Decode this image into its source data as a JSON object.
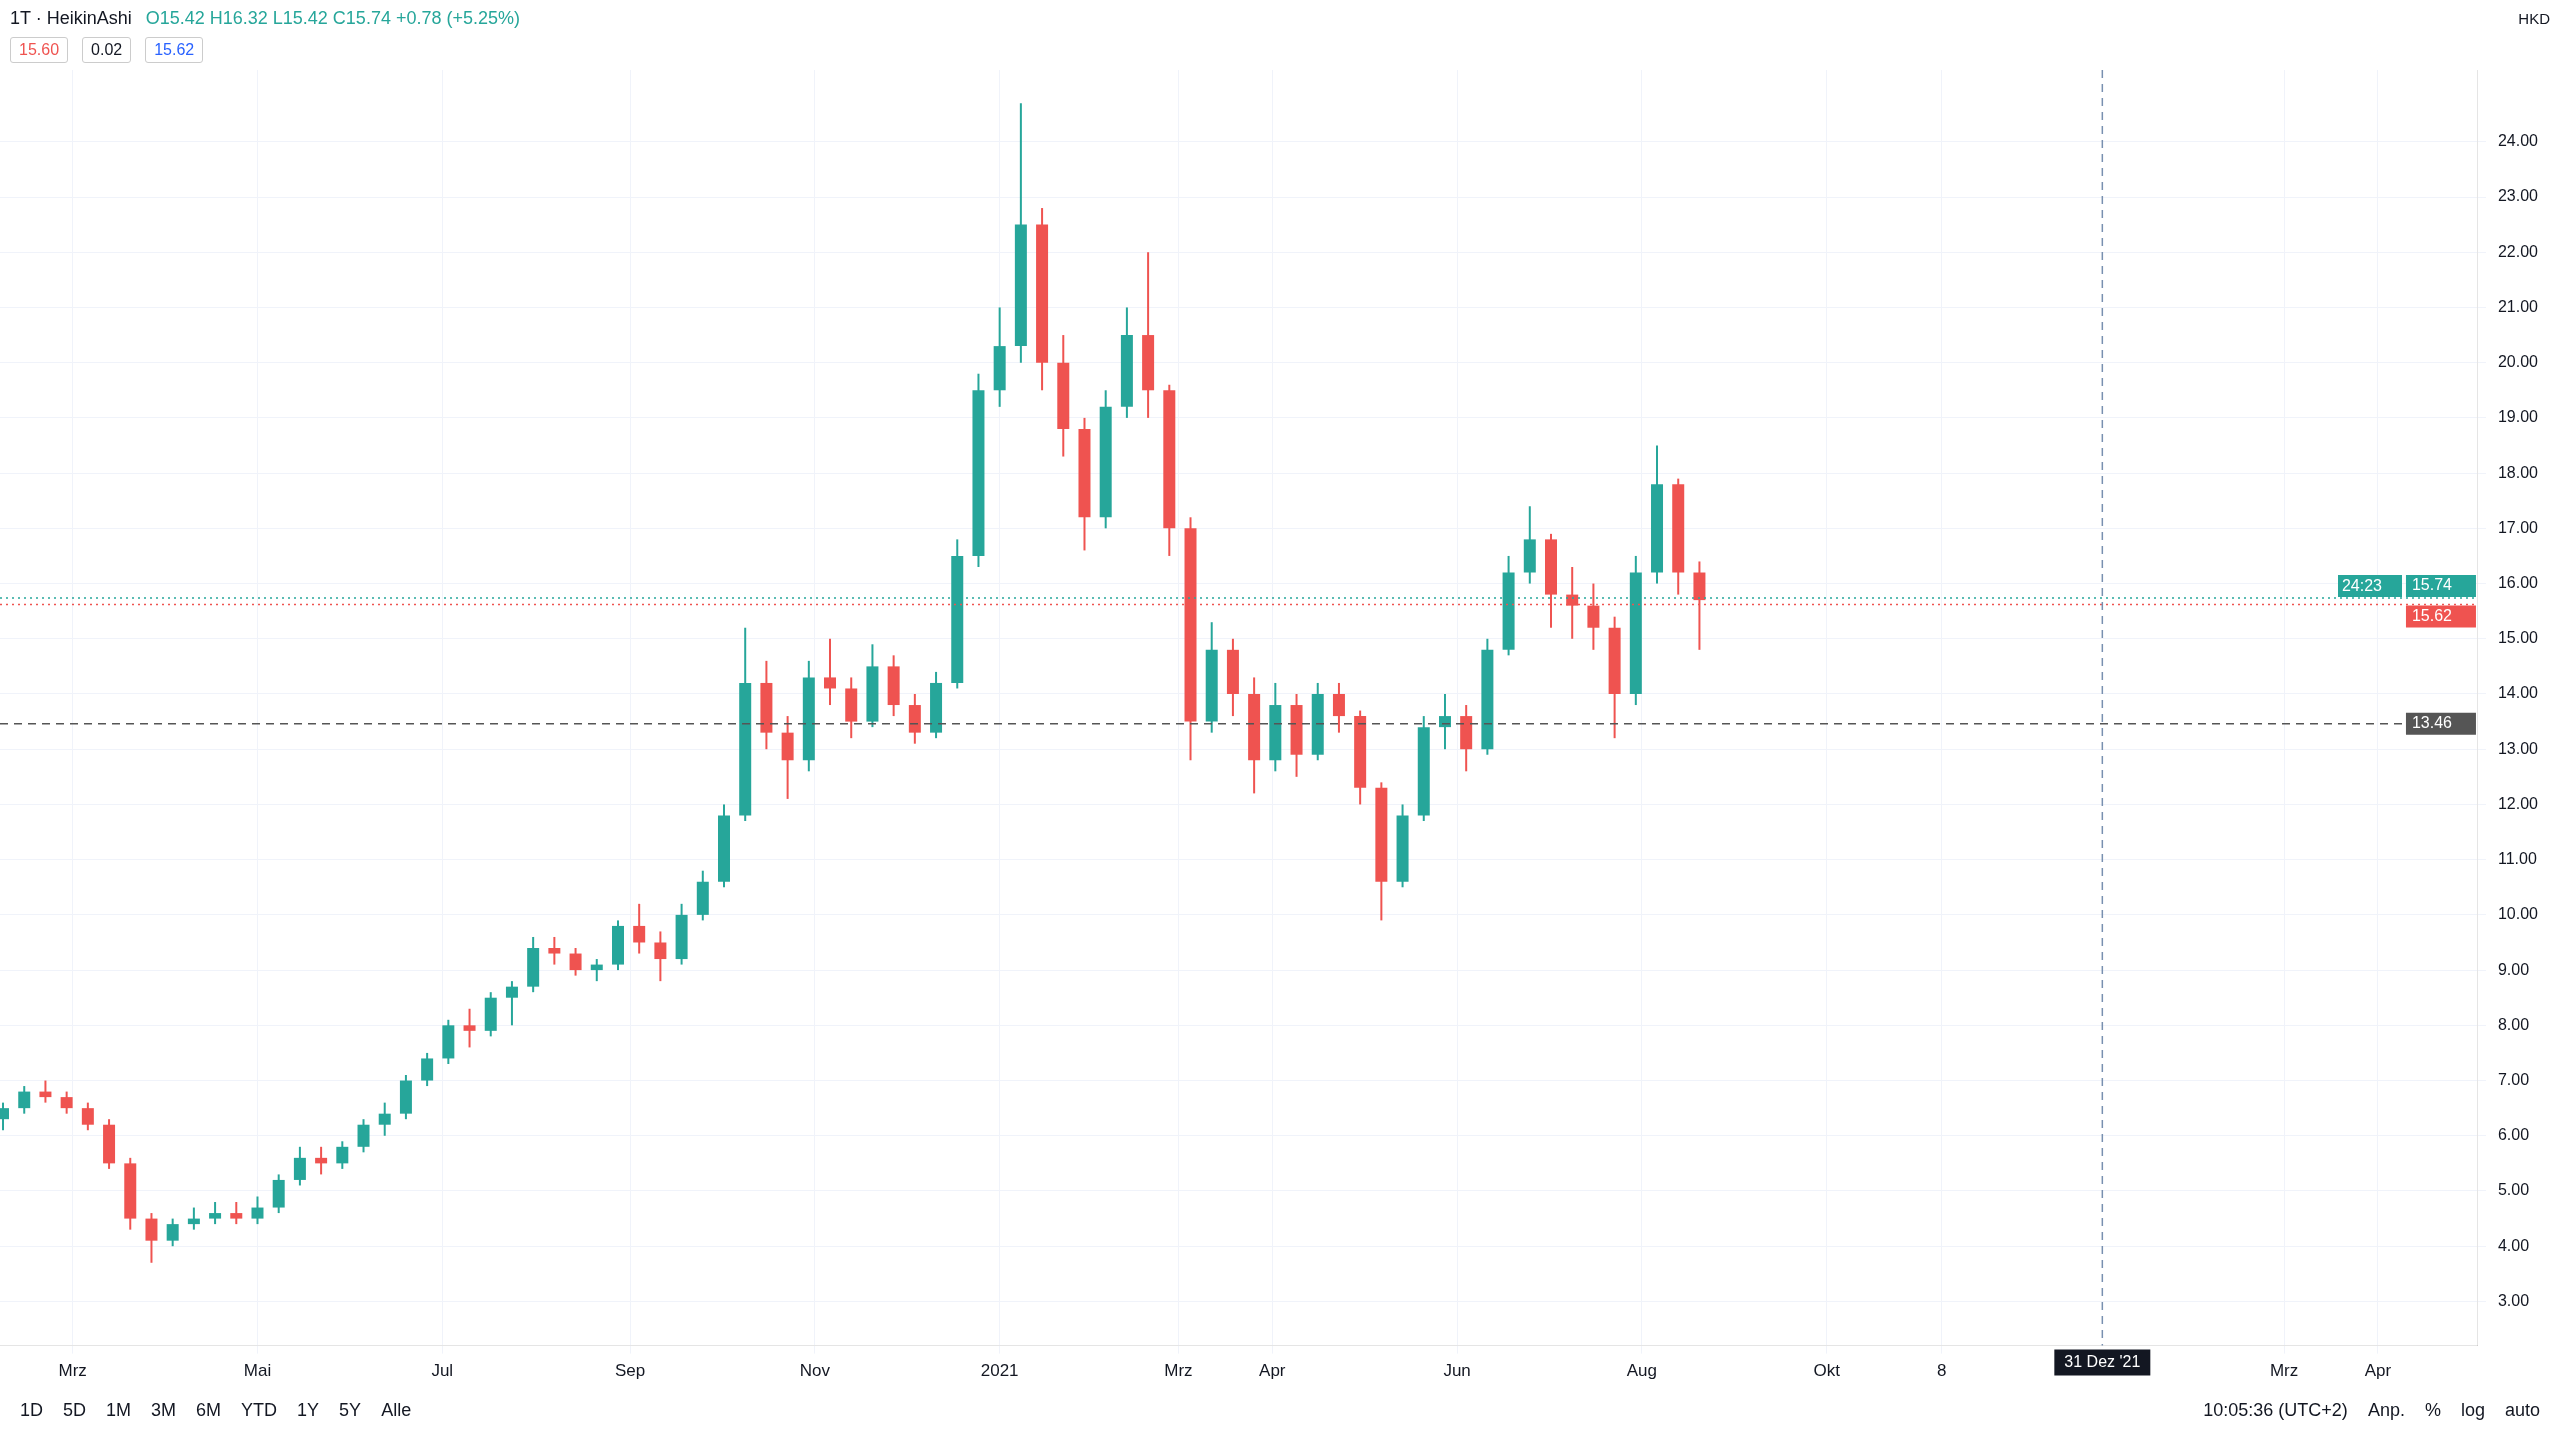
{
  "chart_data": {
    "type": "candlestick",
    "title": "1T · HeikinAshi",
    "subtitle": "O15.42 H16.32 L15.42 C15.74 +0.78 (+5.25%)",
    "annotations": [
      "15.60",
      "0.02",
      "15.62",
      "24:23",
      "HKD",
      "1D",
      "5D",
      "1M",
      "3M",
      "6M",
      "YTD",
      "1Y",
      "5Y",
      "Alle",
      "10:05:36 (UTC+2)",
      "Anp.",
      "%",
      "log",
      "auto"
    ],
    "x": [
      "2020-02-07",
      "2020-02-14",
      "2020-02-21",
      "2020-02-28",
      "2020-03-06",
      "2020-03-13",
      "2020-03-20",
      "2020-03-27",
      "2020-04-03",
      "2020-04-10",
      "2020-04-17",
      "2020-04-24",
      "2020-05-01",
      "2020-05-08",
      "2020-05-15",
      "2020-05-22",
      "2020-05-29",
      "2020-06-05",
      "2020-06-12",
      "2020-06-19",
      "2020-06-26",
      "2020-07-03",
      "2020-07-10",
      "2020-07-17",
      "2020-07-24",
      "2020-07-31",
      "2020-08-07",
      "2020-08-14",
      "2020-08-21",
      "2020-08-28",
      "2020-09-04",
      "2020-09-11",
      "2020-09-18",
      "2020-09-25",
      "2020-10-02",
      "2020-10-09",
      "2020-10-16",
      "2020-10-23",
      "2020-10-30",
      "2020-11-06",
      "2020-11-13",
      "2020-11-20",
      "2020-11-27",
      "2020-12-04",
      "2020-12-11",
      "2020-12-18",
      "2020-12-25",
      "2021-01-01",
      "2021-01-08",
      "2021-01-15",
      "2021-01-22",
      "2021-01-29",
      "2021-02-05",
      "2021-02-12",
      "2021-02-19",
      "2021-02-26",
      "2021-03-05",
      "2021-03-12",
      "2021-03-19",
      "2021-03-26",
      "2021-04-02",
      "2021-04-09",
      "2021-04-16",
      "2021-04-23",
      "2021-04-30",
      "2021-05-07",
      "2021-05-14",
      "2021-05-21",
      "2021-05-28",
      "2021-06-04",
      "2021-06-11",
      "2021-06-18",
      "2021-06-25",
      "2021-07-02",
      "2021-07-09",
      "2021-07-16",
      "2021-07-23",
      "2021-07-30",
      "2021-08-06",
      "2021-08-13",
      "2021-08-20"
    ],
    "ohlc": [
      [
        6.3,
        6.6,
        6.1,
        6.5
      ],
      [
        6.5,
        6.9,
        6.4,
        6.8
      ],
      [
        6.8,
        7.0,
        6.6,
        6.7
      ],
      [
        6.7,
        6.8,
        6.4,
        6.5
      ],
      [
        6.5,
        6.6,
        6.1,
        6.2
      ],
      [
        6.2,
        6.3,
        5.4,
        5.5
      ],
      [
        5.5,
        5.6,
        4.3,
        4.5
      ],
      [
        4.5,
        4.6,
        3.7,
        4.1
      ],
      [
        4.1,
        4.5,
        4.0,
        4.4
      ],
      [
        4.4,
        4.7,
        4.3,
        4.5
      ],
      [
        4.5,
        4.8,
        4.4,
        4.6
      ],
      [
        4.6,
        4.8,
        4.4,
        4.5
      ],
      [
        4.5,
        4.9,
        4.4,
        4.7
      ],
      [
        4.7,
        5.3,
        4.6,
        5.2
      ],
      [
        5.2,
        5.8,
        5.1,
        5.6
      ],
      [
        5.6,
        5.8,
        5.3,
        5.5
      ],
      [
        5.5,
        5.9,
        5.4,
        5.8
      ],
      [
        5.8,
        6.3,
        5.7,
        6.2
      ],
      [
        6.2,
        6.6,
        6.0,
        6.4
      ],
      [
        6.4,
        7.1,
        6.3,
        7.0
      ],
      [
        7.0,
        7.5,
        6.9,
        7.4
      ],
      [
        7.4,
        8.1,
        7.3,
        8.0
      ],
      [
        8.0,
        8.3,
        7.6,
        7.9
      ],
      [
        7.9,
        8.6,
        7.8,
        8.5
      ],
      [
        8.5,
        8.8,
        8.0,
        8.7
      ],
      [
        8.7,
        9.6,
        8.6,
        9.4
      ],
      [
        9.4,
        9.6,
        9.1,
        9.3
      ],
      [
        9.3,
        9.4,
        8.9,
        9.0
      ],
      [
        9.0,
        9.2,
        8.8,
        9.1
      ],
      [
        9.1,
        9.9,
        9.0,
        9.8
      ],
      [
        9.8,
        10.2,
        9.3,
        9.5
      ],
      [
        9.5,
        9.7,
        8.8,
        9.2
      ],
      [
        9.2,
        10.2,
        9.1,
        10.0
      ],
      [
        10.0,
        10.8,
        9.9,
        10.6
      ],
      [
        10.6,
        12.0,
        10.5,
        11.8
      ],
      [
        11.8,
        15.2,
        11.7,
        14.2
      ],
      [
        14.2,
        14.6,
        13.0,
        13.3
      ],
      [
        13.3,
        13.6,
        12.1,
        12.8
      ],
      [
        12.8,
        14.6,
        12.6,
        14.3
      ],
      [
        14.3,
        15.0,
        13.8,
        14.1
      ],
      [
        14.1,
        14.3,
        13.2,
        13.5
      ],
      [
        13.5,
        14.9,
        13.4,
        14.5
      ],
      [
        14.5,
        14.7,
        13.6,
        13.8
      ],
      [
        13.8,
        14.0,
        13.1,
        13.3
      ],
      [
        13.3,
        14.4,
        13.2,
        14.2
      ],
      [
        14.2,
        16.8,
        14.1,
        16.5
      ],
      [
        16.5,
        19.8,
        16.3,
        19.5
      ],
      [
        19.5,
        21.0,
        19.2,
        20.3
      ],
      [
        20.3,
        24.7,
        20.0,
        22.5
      ],
      [
        22.5,
        22.8,
        19.5,
        20.0
      ],
      [
        20.0,
        20.5,
        18.3,
        18.8
      ],
      [
        18.8,
        19.0,
        16.6,
        17.2
      ],
      [
        17.2,
        19.5,
        17.0,
        19.2
      ],
      [
        19.2,
        21.0,
        19.0,
        20.5
      ],
      [
        20.5,
        22.0,
        19.0,
        19.5
      ],
      [
        19.5,
        19.6,
        16.5,
        17.0
      ],
      [
        17.0,
        17.2,
        12.8,
        13.5
      ],
      [
        13.5,
        15.3,
        13.3,
        14.8
      ],
      [
        14.8,
        15.0,
        13.6,
        14.0
      ],
      [
        14.0,
        14.3,
        12.2,
        12.8
      ],
      [
        12.8,
        14.2,
        12.6,
        13.8
      ],
      [
        13.8,
        14.0,
        12.5,
        12.9
      ],
      [
        12.9,
        14.2,
        12.8,
        14.0
      ],
      [
        14.0,
        14.2,
        13.3,
        13.6
      ],
      [
        13.6,
        13.7,
        12.0,
        12.3
      ],
      [
        12.3,
        12.4,
        9.9,
        10.6
      ],
      [
        10.6,
        12.0,
        10.5,
        11.8
      ],
      [
        11.8,
        13.6,
        11.7,
        13.4
      ],
      [
        13.4,
        14.0,
        13.0,
        13.6
      ],
      [
        13.6,
        13.8,
        12.6,
        13.0
      ],
      [
        13.0,
        15.0,
        12.9,
        14.8
      ],
      [
        14.8,
        16.5,
        14.7,
        16.2
      ],
      [
        16.2,
        17.4,
        16.0,
        16.8
      ],
      [
        16.8,
        16.9,
        15.2,
        15.8
      ],
      [
        15.8,
        16.3,
        15.0,
        15.6
      ],
      [
        15.6,
        16.0,
        14.8,
        15.2
      ],
      [
        15.2,
        15.4,
        13.2,
        14.0
      ],
      [
        14.0,
        16.5,
        13.8,
        16.2
      ],
      [
        16.2,
        18.5,
        16.0,
        17.8
      ],
      [
        17.8,
        17.9,
        15.8,
        16.2
      ],
      [
        16.2,
        16.4,
        14.8,
        15.7
      ]
    ],
    "colors": [
      "#26a69a",
      "#26a69a",
      "#ef5350",
      "#ef5350",
      "#ef5350",
      "#ef5350",
      "#ef5350",
      "#ef5350",
      "#26a69a",
      "#26a69a",
      "#26a69a",
      "#ef5350",
      "#26a69a",
      "#26a69a",
      "#26a69a",
      "#ef5350",
      "#26a69a",
      "#26a69a",
      "#26a69a",
      "#26a69a",
      "#26a69a",
      "#26a69a",
      "#ef5350",
      "#26a69a",
      "#26a69a",
      "#26a69a",
      "#ef5350",
      "#ef5350",
      "#26a69a",
      "#26a69a",
      "#ef5350",
      "#ef5350",
      "#26a69a",
      "#26a69a",
      "#26a69a",
      "#26a69a",
      "#ef5350",
      "#ef5350",
      "#26a69a",
      "#ef5350",
      "#ef5350",
      "#26a69a",
      "#ef5350",
      "#ef5350",
      "#26a69a",
      "#26a69a",
      "#26a69a",
      "#26a69a",
      "#26a69a",
      "#ef5350",
      "#ef5350",
      "#ef5350",
      "#26a69a",
      "#26a69a",
      "#ef5350",
      "#ef5350",
      "#ef5350",
      "#26a69a",
      "#ef5350",
      "#ef5350",
      "#26a69a",
      "#ef5350",
      "#26a69a",
      "#ef5350",
      "#ef5350",
      "#ef5350",
      "#26a69a",
      "#26a69a",
      "#26a69a",
      "#ef5350",
      "#26a69a",
      "#26a69a",
      "#26a69a",
      "#ef5350",
      "#ef5350",
      "#ef5350",
      "#ef5350",
      "#26a69a",
      "#26a69a",
      "#ef5350",
      "#ef5350"
    ],
    "xlim": [
      "2020-02-06",
      "2022-05-04"
    ],
    "xticks": [
      {
        "value": "2020-03-01",
        "label": "Mrz"
      },
      {
        "value": "2020-05-01",
        "label": "Mai"
      },
      {
        "value": "2020-07-01",
        "label": "Jul"
      },
      {
        "value": "2020-09-01",
        "label": "Sep"
      },
      {
        "value": "2020-11-01",
        "label": "Nov"
      },
      {
        "value": "2021-01-01",
        "label": "2021"
      },
      {
        "value": "2021-03-01",
        "label": "Mrz"
      },
      {
        "value": "2021-04-01",
        "label": "Apr"
      },
      {
        "value": "2021-06-01",
        "label": "Jun"
      },
      {
        "value": "2021-08-01",
        "label": "Aug"
      },
      {
        "value": "2021-10-01",
        "label": "Okt"
      },
      {
        "value": "2021-11-08",
        "label": "8"
      },
      {
        "value": "2022-03-01",
        "label": "Mrz"
      },
      {
        "value": "2022-04-01",
        "label": "Apr"
      }
    ],
    "ylim": [
      2.2,
      25.3
    ],
    "yticks": [
      {
        "value": 3,
        "label": "3.00"
      },
      {
        "value": 4,
        "label": "4.00"
      },
      {
        "value": 5,
        "label": "5.00"
      },
      {
        "value": 6,
        "label": "6.00"
      },
      {
        "value": 7,
        "label": "7.00"
      },
      {
        "value": 8,
        "label": "8.00"
      },
      {
        "value": 9,
        "label": "9.00"
      },
      {
        "value": 10,
        "label": "10.00"
      },
      {
        "value": 11,
        "label": "11.00"
      },
      {
        "value": 12,
        "label": "12.00"
      },
      {
        "value": 13,
        "label": "13.00"
      },
      {
        "value": 14,
        "label": "14.00"
      },
      {
        "value": 15,
        "label": "15.00"
      },
      {
        "value": 16,
        "label": "16.00"
      },
      {
        "value": 17,
        "label": "17.00"
      },
      {
        "value": 18,
        "label": "18.00"
      },
      {
        "value": 19,
        "label": "19.00"
      },
      {
        "value": 20,
        "label": "20.00"
      },
      {
        "value": 21,
        "label": "21.00"
      },
      {
        "value": 22,
        "label": "22.00"
      },
      {
        "value": 23,
        "label": "23.00"
      },
      {
        "value": 24,
        "label": "24.00"
      }
    ],
    "ref_lines": [
      {
        "axis": "y",
        "value": 15.74,
        "label": "15.74",
        "color": "#26a69a",
        "line_style": "dotted"
      },
      {
        "axis": "y",
        "value": 15.62,
        "label": "15.62",
        "color": "#ef5350",
        "line_style": "dotted"
      },
      {
        "axis": "y",
        "value": 13.46,
        "label": "13.46",
        "color": "#555555",
        "line_style": "dashed"
      },
      {
        "axis": "x",
        "value": "2021-12-31",
        "label": "31 Dez '21",
        "color": "#7890b0",
        "line_style": "dashed"
      }
    ],
    "grid": true,
    "legend": false
  }
}
